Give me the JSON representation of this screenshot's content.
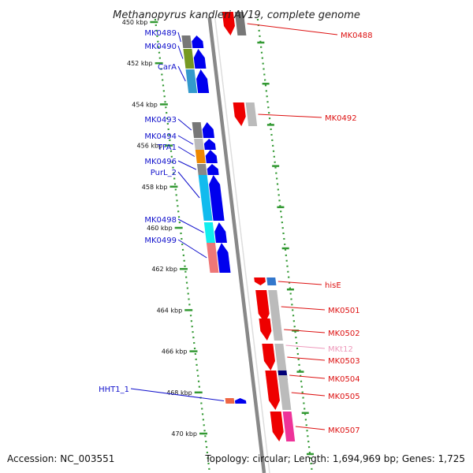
{
  "title": "Methanopyrus kandleri AV19, complete genome",
  "accession": "Accession: NC_003551",
  "topology": "Topology: circular; Length: 1,694,969 bp; Genes: 1,725",
  "colors": {
    "forward_label": "#1111cc",
    "reverse_label": "#dd1111",
    "rna_label": "#ee99bb",
    "forward_arrow": "#0000ee",
    "reverse_arrow": "#ee0000",
    "tick": "#339933",
    "backbone": "#888888"
  },
  "ticks": [
    {
      "label": "450 kbp"
    },
    {
      "label": "452 kbp"
    },
    {
      "label": "454 kbp"
    },
    {
      "label": "456 kbp"
    },
    {
      "label": "458 kbp"
    },
    {
      "label": "460 kbp"
    },
    {
      "label": "462 kbp"
    },
    {
      "label": "464 kbp"
    },
    {
      "label": "466 kbp"
    },
    {
      "label": "468 kbp"
    },
    {
      "label": "470 kbp"
    }
  ],
  "left_genes": [
    {
      "label": "MK0489",
      "category_color": "#777777"
    },
    {
      "label": "MK0490",
      "category_color": "#779922"
    },
    {
      "label": "CarA",
      "category_color": "#3399cc"
    },
    {
      "label": "MK0493",
      "category_color": "#777777"
    },
    {
      "label": "MK0494",
      "category_color": "#bbbbbb"
    },
    {
      "label": "TFA1",
      "category_color": "#ee8800"
    },
    {
      "label": "MK0496",
      "category_color": "#888888"
    },
    {
      "label": "PurL_2",
      "category_color": "#11bbee"
    },
    {
      "label": "MK0498",
      "category_color": "#11eeee"
    },
    {
      "label": "MK0499",
      "category_color": "#ee7777"
    },
    {
      "label": "HHT1_1",
      "category_color": "#ee6644"
    }
  ],
  "right_genes": [
    {
      "label": "MK0488",
      "category_color": "#777777"
    },
    {
      "label": "MK0492",
      "category_color": "#bbbbbb"
    },
    {
      "label": "hisE",
      "category_color": "#3377cc"
    },
    {
      "label": "MK0501",
      "category_color": "#bbbbbb"
    },
    {
      "label": "MK0502",
      "category_color": "#bbbbbb"
    },
    {
      "label": "MKt12",
      "category_color": "#ee99bb"
    },
    {
      "label": "MK0503",
      "category_color": "#bbbbbb"
    },
    {
      "label": "MK0504",
      "category_color": "#000077"
    },
    {
      "label": "MK0505",
      "category_color": "#bbbbbb"
    },
    {
      "label": "MK0507",
      "category_color": "#ee3399"
    }
  ]
}
